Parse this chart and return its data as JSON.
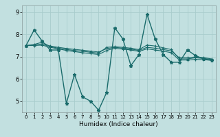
{
  "xlabel": "Humidex (Indice chaleur)",
  "bg_color": "#c2e0e0",
  "line_color": "#1a6b6b",
  "grid_color": "#a8cccc",
  "xlim": [
    -0.5,
    23.5
  ],
  "ylim": [
    4.5,
    9.3
  ],
  "yticks": [
    5,
    6,
    7,
    8,
    9
  ],
  "xticks": [
    0,
    1,
    2,
    3,
    4,
    5,
    6,
    7,
    8,
    9,
    10,
    11,
    12,
    13,
    14,
    15,
    16,
    17,
    18,
    19,
    20,
    21,
    22,
    23
  ],
  "series_volatile": [
    7.5,
    8.2,
    7.7,
    7.3,
    7.3,
    4.9,
    6.2,
    5.2,
    5.0,
    4.6,
    5.4,
    8.3,
    7.8,
    6.6,
    7.1,
    8.9,
    7.8,
    7.1,
    6.75,
    6.75,
    7.3,
    7.05,
    6.9,
    6.85
  ],
  "series_smooth1": [
    7.5,
    7.55,
    7.65,
    7.45,
    7.38,
    7.32,
    7.28,
    7.24,
    7.2,
    7.16,
    7.42,
    7.45,
    7.42,
    7.38,
    7.32,
    7.52,
    7.48,
    7.4,
    7.32,
    6.9,
    6.9,
    6.95,
    6.92,
    6.88
  ],
  "series_smooth2": [
    7.5,
    7.52,
    7.58,
    7.48,
    7.42,
    7.37,
    7.33,
    7.29,
    7.25,
    7.21,
    7.36,
    7.42,
    7.38,
    7.34,
    7.28,
    7.42,
    7.38,
    7.32,
    7.26,
    6.95,
    6.95,
    6.99,
    6.96,
    6.9
  ],
  "series_smooth3": [
    7.5,
    7.5,
    7.52,
    7.42,
    7.35,
    7.28,
    7.23,
    7.18,
    7.14,
    7.1,
    7.28,
    7.38,
    7.34,
    7.3,
    7.24,
    7.35,
    7.3,
    7.25,
    7.18,
    6.85,
    6.85,
    6.88,
    6.87,
    6.83
  ]
}
